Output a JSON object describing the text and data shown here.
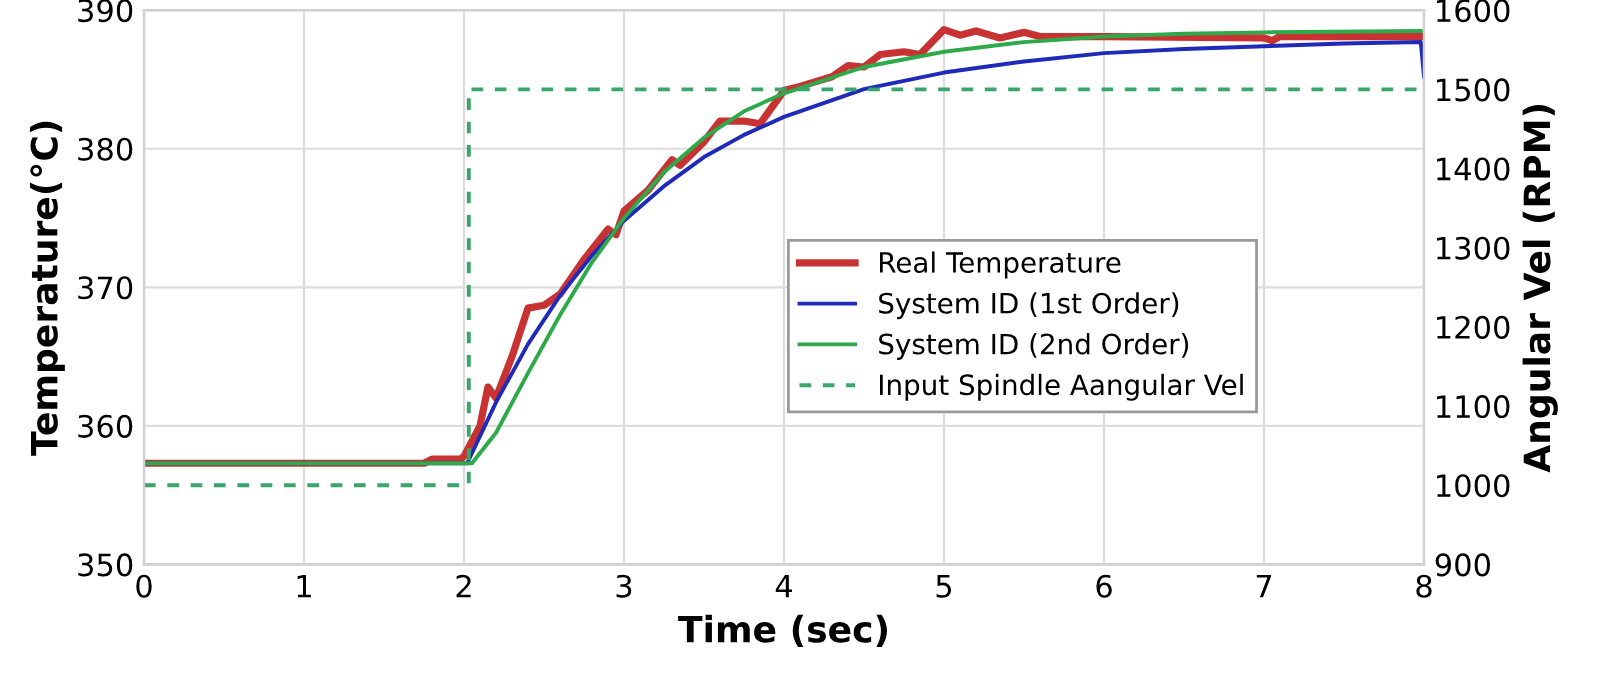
{
  "chart_data": {
    "type": "line",
    "xlabel": "Time (sec)",
    "ylabel": "Temperature(°C)",
    "y2label": "Angular Vel (RPM)",
    "xlim": [
      0,
      8
    ],
    "xticks": [
      0,
      1,
      2,
      3,
      4,
      5,
      6,
      7,
      8
    ],
    "ylim": [
      350,
      390
    ],
    "yticks": [
      350,
      360,
      370,
      380,
      390
    ],
    "y2lim": [
      900,
      1600
    ],
    "y2ticks": [
      900,
      1000,
      1100,
      1200,
      1300,
      1400,
      1500,
      1600
    ],
    "grid": true,
    "legend": "center right",
    "marker": "none",
    "line_style": "solid",
    "series": [
      {
        "name": "Real Temperature",
        "color": "#c83232",
        "x": [
          0,
          1.75,
          1.8,
          1.98,
          2.0,
          2.1,
          2.15,
          2.2,
          2.3,
          2.4,
          2.5,
          2.6,
          2.75,
          2.9,
          2.95,
          3.0,
          3.15,
          3.3,
          3.35,
          3.5,
          3.6,
          3.75,
          3.85,
          4.0,
          4.1,
          4.3,
          4.4,
          4.5,
          4.6,
          4.75,
          4.85,
          5.0,
          5.1,
          5.2,
          5.35,
          5.5,
          5.6,
          6.0,
          7.0,
          7.05,
          7.1,
          8.0
        ],
        "values": [
          357.3,
          357.3,
          357.6,
          357.6,
          357.8,
          360,
          362.8,
          362,
          365,
          368.5,
          368.7,
          369.5,
          372,
          374.2,
          373.8,
          375.5,
          377,
          379.2,
          378.8,
          380.5,
          382,
          382,
          381.8,
          384.2,
          384.5,
          385.2,
          386,
          385.9,
          386.8,
          387,
          386.8,
          388.6,
          388.2,
          388.5,
          388,
          388.4,
          388.1,
          388.1,
          388.0,
          387.8,
          388.1,
          388.1
        ]
      },
      {
        "name": "System ID (1st Order)",
        "color": "#1f2ab8",
        "x": [
          0,
          2.02,
          2.2,
          2.4,
          2.6,
          2.8,
          3.0,
          3.25,
          3.5,
          3.75,
          4.0,
          4.5,
          5.0,
          5.5,
          6.0,
          6.5,
          7.0,
          7.5,
          7.98,
          8.0
        ],
        "values": [
          357.3,
          357.3,
          361.7,
          365.9,
          369.4,
          372.3,
          374.8,
          377.3,
          379.4,
          381.0,
          382.3,
          384.3,
          385.5,
          386.3,
          386.9,
          387.2,
          387.4,
          387.6,
          387.7,
          385.2
        ]
      },
      {
        "name": "System ID (2nd Order)",
        "color": "#2eaa4a",
        "x": [
          0,
          2.05,
          2.2,
          2.4,
          2.6,
          2.8,
          3.0,
          3.25,
          3.5,
          3.75,
          4.0,
          4.5,
          5.0,
          5.5,
          6.0,
          6.5,
          7.0,
          8.0
        ],
        "values": [
          357.3,
          357.3,
          359.5,
          363.8,
          368.0,
          371.8,
          375.0,
          378.3,
          380.8,
          382.7,
          384.0,
          385.9,
          387.0,
          387.7,
          388.1,
          388.3,
          388.4,
          388.5
        ]
      },
      {
        "name": "Input Spindle Aangular Vel",
        "color": "#3aa56a",
        "type": "step",
        "axis": "y2",
        "line_style": "dashed",
        "x": [
          0,
          2.03,
          8
        ],
        "values": [
          1000,
          1500,
          1500
        ]
      }
    ]
  }
}
